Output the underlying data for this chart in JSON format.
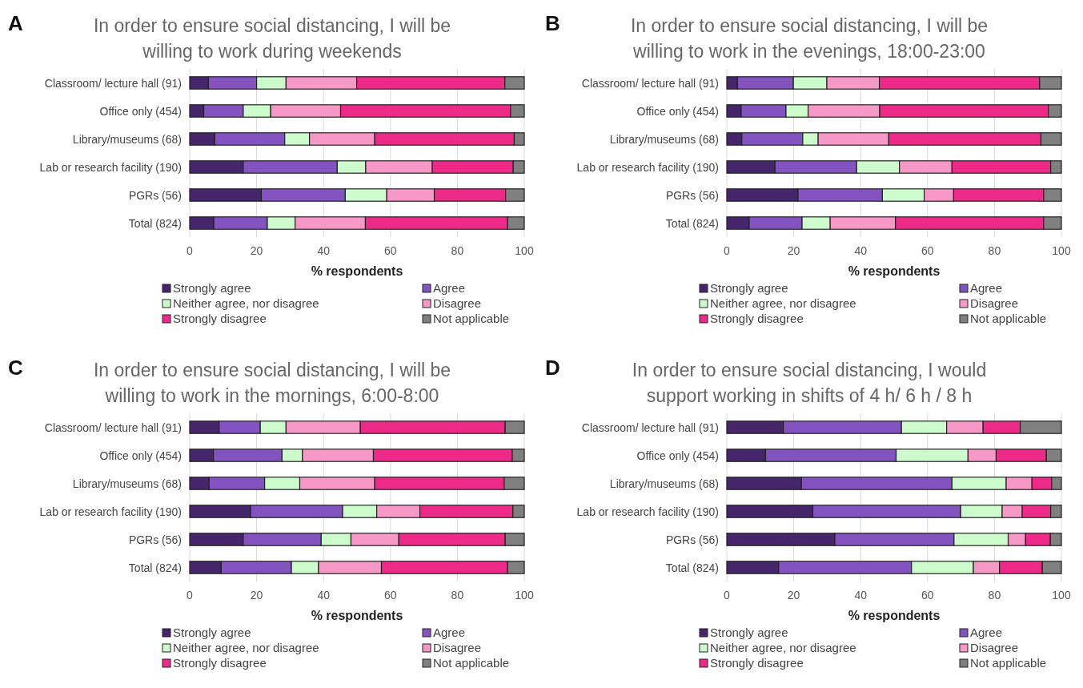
{
  "chart_data": [
    {
      "type": "bar",
      "orientation": "horizontal",
      "stacked": true,
      "title": "In order to ensure social distancing, I will be willing to work during weekends",
      "annotations": [
        "A"
      ],
      "xlabel": "% respondents",
      "categories": [
        "Classroom/ lecture hall (91)",
        "Office only (454)",
        "Library/museums (68)",
        "Lab or research facility (190)",
        "PGRs (56)",
        "Total (824)"
      ],
      "xlim": [
        0,
        100
      ],
      "xticks": [
        0,
        20,
        40,
        60,
        80,
        100
      ],
      "grid": "x",
      "legend": "bottom",
      "series": [
        {
          "name": "Strongly agree",
          "color": "#45266b",
          "values": [
            5.6,
            4.2,
            7.5,
            16.0,
            21.4,
            7.2
          ]
        },
        {
          "name": "Agree",
          "color": "#8354bf",
          "values": [
            14.4,
            11.8,
            20.9,
            28.1,
            25.1,
            16.0
          ]
        },
        {
          "name": "Neither agree, nor disagree",
          "color": "#ccfccc",
          "values": [
            8.8,
            8.2,
            7.4,
            8.5,
            12.4,
            8.3
          ]
        },
        {
          "name": "Disagree",
          "color": "#f799c6",
          "values": [
            21.1,
            20.9,
            19.5,
            19.9,
            14.2,
            21.0
          ]
        },
        {
          "name": "Strongly disagree",
          "color": "#ee2a88",
          "values": [
            44.3,
            50.8,
            41.7,
            24.2,
            21.3,
            42.5
          ]
        },
        {
          "name": "Not applicable",
          "color": "#808080",
          "values": [
            5.8,
            4.1,
            3.0,
            3.3,
            5.6,
            5.0
          ]
        }
      ]
    },
    {
      "type": "bar",
      "orientation": "horizontal",
      "stacked": true,
      "title": "In order to ensure social distancing, I will be willing to work in the evenings, 18:00-23:00",
      "annotations": [
        "B"
      ],
      "xlabel": "% respondents",
      "categories": [
        "Classroom/ lecture hall (91)",
        "Office only (454)",
        "Library/museums (68)",
        "Lab or research facility (190)",
        "PGRs (56)",
        "Total (824)"
      ],
      "xlim": [
        0,
        100
      ],
      "xticks": [
        0,
        20,
        40,
        60,
        80,
        100
      ],
      "grid": "x",
      "legend": "bottom",
      "series": [
        {
          "name": "Strongly agree",
          "color": "#45266b",
          "values": [
            3.2,
            4.3,
            4.5,
            14.4,
            21.3,
            6.7
          ]
        },
        {
          "name": "Agree",
          "color": "#8354bf",
          "values": [
            16.7,
            13.4,
            18.2,
            24.4,
            25.2,
            15.8
          ]
        },
        {
          "name": "Neither agree, nor disagree",
          "color": "#ccfccc",
          "values": [
            10.0,
            6.6,
            4.6,
            12.8,
            12.5,
            8.4
          ]
        },
        {
          "name": "Disagree",
          "color": "#f799c6",
          "values": [
            15.7,
            21.4,
            21.1,
            15.7,
            8.8,
            19.5
          ]
        },
        {
          "name": "Strongly disagree",
          "color": "#ee2a88",
          "values": [
            47.9,
            50.4,
            45.5,
            29.5,
            26.9,
            44.3
          ]
        },
        {
          "name": "Not applicable",
          "color": "#808080",
          "values": [
            6.5,
            3.9,
            6.1,
            3.2,
            5.3,
            5.3
          ]
        }
      ]
    },
    {
      "type": "bar",
      "orientation": "horizontal",
      "stacked": true,
      "title": "In order to ensure social distancing, I will be willing to work in the mornings, 6:00-8:00",
      "annotations": [
        "C"
      ],
      "xlabel": "% respondents",
      "categories": [
        "Classroom/ lecture hall (91)",
        "Office only (454)",
        "Library/museums (68)",
        "Lab or research facility (190)",
        "PGRs (56)",
        "Total (824)"
      ],
      "xlim": [
        0,
        100
      ],
      "xticks": [
        0,
        20,
        40,
        60,
        80,
        100
      ],
      "grid": "x",
      "legend": "bottom",
      "series": [
        {
          "name": "Strongly agree",
          "color": "#45266b",
          "values": [
            8.8,
            7.1,
            5.8,
            18.2,
            16.0,
            9.4
          ]
        },
        {
          "name": "Agree",
          "color": "#8354bf",
          "values": [
            12.3,
            20.5,
            16.6,
            27.5,
            23.3,
            21.0
          ]
        },
        {
          "name": "Neither agree, nor disagree",
          "color": "#ccfccc",
          "values": [
            7.7,
            6.1,
            10.5,
            10.2,
            8.9,
            8.1
          ]
        },
        {
          "name": "Disagree",
          "color": "#f799c6",
          "values": [
            22.2,
            21.2,
            22.4,
            12.9,
            14.3,
            18.8
          ]
        },
        {
          "name": "Strongly disagree",
          "color": "#ee2a88",
          "values": [
            43.3,
            41.5,
            38.7,
            27.8,
            31.8,
            37.7
          ]
        },
        {
          "name": "Not applicable",
          "color": "#808080",
          "values": [
            5.7,
            3.6,
            6.0,
            3.4,
            5.7,
            5.0
          ]
        }
      ]
    },
    {
      "type": "bar",
      "orientation": "horizontal",
      "stacked": true,
      "title": "In order to ensure social distancing, I would support working in shifts of 4 h/ 6 h / 8 h",
      "annotations": [
        "D"
      ],
      "xlabel": "% respondents",
      "categories": [
        "Classroom/ lecture hall (91)",
        "Office only (454)",
        "Library/museums (68)",
        "Lab or research facility (190)",
        "PGRs (56)",
        "Total (824)"
      ],
      "xlim": [
        0,
        100
      ],
      "xticks": [
        0,
        20,
        40,
        60,
        80,
        100
      ],
      "grid": "x",
      "legend": "bottom",
      "series": [
        {
          "name": "Strongly agree",
          "color": "#45266b",
          "values": [
            16.9,
            11.6,
            22.3,
            25.7,
            32.3,
            15.5
          ]
        },
        {
          "name": "Agree",
          "color": "#8354bf",
          "values": [
            35.3,
            39.0,
            45.0,
            44.2,
            35.6,
            39.7
          ]
        },
        {
          "name": "Neither agree, nor disagree",
          "color": "#ccfccc",
          "values": [
            13.5,
            21.5,
            16.2,
            12.4,
            16.2,
            18.5
          ]
        },
        {
          "name": "Disagree",
          "color": "#f799c6",
          "values": [
            10.9,
            8.4,
            7.7,
            6.0,
            5.2,
            7.8
          ]
        },
        {
          "name": "Strongly disagree",
          "color": "#ee2a88",
          "values": [
            11.1,
            15.0,
            5.9,
            8.5,
            7.4,
            12.8
          ]
        },
        {
          "name": "Not applicable",
          "color": "#808080",
          "values": [
            12.3,
            4.5,
            2.9,
            3.2,
            3.3,
            5.7
          ]
        }
      ]
    }
  ]
}
